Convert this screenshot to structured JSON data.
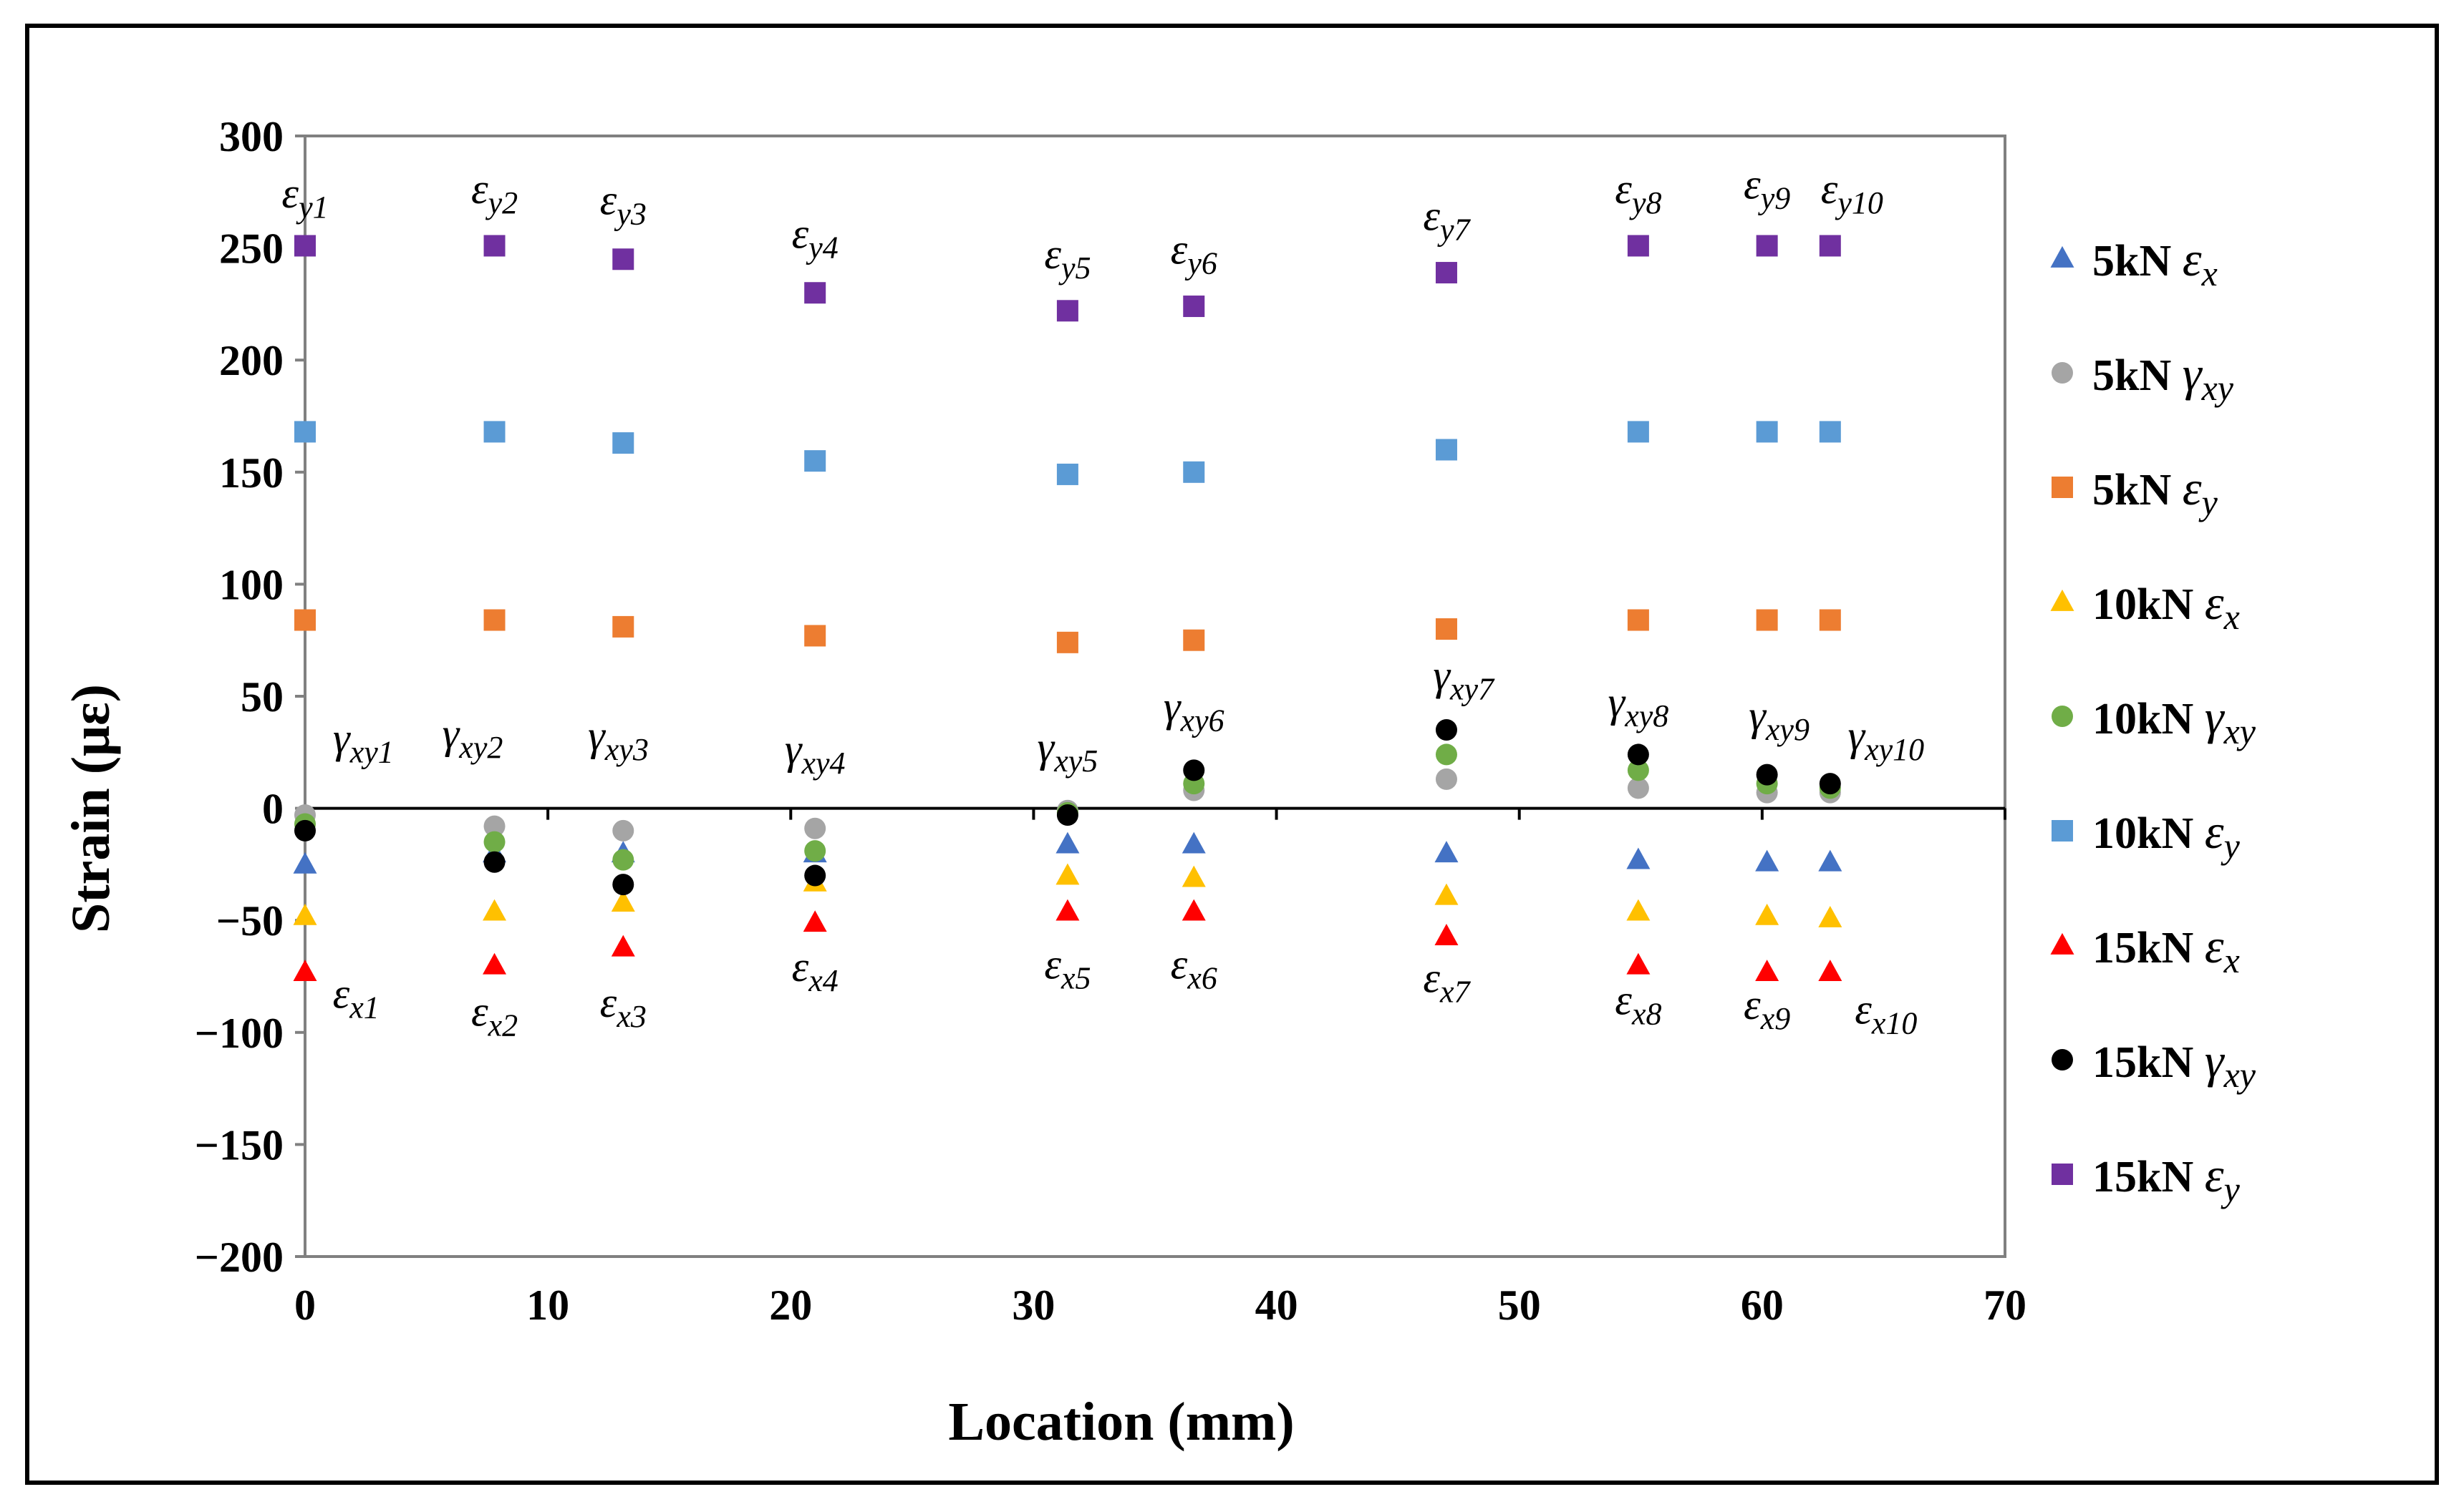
{
  "chart_data": {
    "type": "scatter",
    "title": "",
    "xlabel": "Location (mm)",
    "ylabel": "Strain (με)",
    "xlim": [
      0,
      70
    ],
    "ylim": [
      -200,
      300
    ],
    "x_ticks": [
      "0",
      "10",
      "20",
      "30",
      "40",
      "50",
      "60",
      "70"
    ],
    "y_ticks": [
      "300",
      "250",
      "200",
      "150",
      "100",
      "50",
      "0",
      "−50",
      "−100",
      "−150",
      "−200"
    ],
    "x": [
      0,
      7.8,
      13.1,
      21,
      31.4,
      36.6,
      47,
      54.9,
      60.2,
      62.8
    ],
    "series": [
      {
        "name": "5kN εx",
        "load": "5kN",
        "symbol": "ε",
        "sub": "x",
        "marker": "triangle",
        "color": "#4472C4",
        "values": [
          -25,
          -20,
          -20,
          -20,
          -16,
          -16,
          -20,
          -23,
          -24,
          -24
        ]
      },
      {
        "name": "5kN γxy",
        "load": "5kN",
        "symbol": "γ",
        "sub": "xy",
        "marker": "circle",
        "color": "#A5A5A5",
        "values": [
          -3,
          -8,
          -10,
          -9,
          -1,
          8,
          13,
          9,
          7,
          7
        ]
      },
      {
        "name": "5kN εy",
        "load": "5kN",
        "symbol": "ε",
        "sub": "y",
        "marker": "square",
        "color": "#ED7D31",
        "values": [
          84,
          84,
          81,
          77,
          74,
          75,
          80,
          84,
          84,
          84
        ]
      },
      {
        "name": "10kN εx",
        "load": "10kN",
        "symbol": "ε",
        "sub": "x",
        "marker": "triangle",
        "color": "#FFC000",
        "values": [
          -48,
          -46,
          -42,
          -33,
          -30,
          -31,
          -39,
          -46,
          -48,
          -49
        ]
      },
      {
        "name": "10kN γxy",
        "load": "10kN",
        "symbol": "γ",
        "sub": "xy",
        "marker": "circle",
        "color": "#70AD47",
        "values": [
          -7,
          -15,
          -23,
          -19,
          -2,
          11,
          24,
          17,
          11,
          9
        ]
      },
      {
        "name": "10kN εy",
        "load": "10kN",
        "symbol": "ε",
        "sub": "y",
        "marker": "square",
        "color": "#5B9BD5",
        "values": [
          168,
          168,
          163,
          155,
          149,
          150,
          160,
          168,
          168,
          168
        ]
      },
      {
        "name": "15kN εx",
        "load": "15kN",
        "symbol": "ε",
        "sub": "x",
        "marker": "triangle",
        "color": "#FF0000",
        "values": [
          -73,
          -70,
          -62,
          -51,
          -46,
          -46,
          -57,
          -70,
          -73,
          -73
        ]
      },
      {
        "name": "15kN γxy",
        "load": "15kN",
        "symbol": "γ",
        "sub": "xy",
        "marker": "circle",
        "color": "#000000",
        "values": [
          -10,
          -24,
          -34,
          -30,
          -3,
          17,
          35,
          24,
          15,
          11
        ]
      },
      {
        "name": "15kN εy",
        "load": "15kN",
        "symbol": "ε",
        "sub": "y",
        "marker": "square",
        "color": "#7030A0",
        "values": [
          251,
          251,
          245,
          230,
          222,
          224,
          239,
          251,
          251,
          251
        ]
      }
    ],
    "annotations": [
      {
        "sym": "ε",
        "sub": "y1",
        "x": 0,
        "y": 268
      },
      {
        "sym": "ε",
        "sub": "y2",
        "x": 7.8,
        "y": 270
      },
      {
        "sym": "ε",
        "sub": "y3",
        "x": 13.1,
        "y": 265
      },
      {
        "sym": "ε",
        "sub": "y4",
        "x": 21,
        "y": 250
      },
      {
        "sym": "ε",
        "sub": "y5",
        "x": 31.4,
        "y": 241
      },
      {
        "sym": "ε",
        "sub": "y6",
        "x": 36.6,
        "y": 243
      },
      {
        "sym": "ε",
        "sub": "y7",
        "x": 47,
        "y": 258
      },
      {
        "sym": "ε",
        "sub": "y8",
        "x": 54.9,
        "y": 270
      },
      {
        "sym": "ε",
        "sub": "y9",
        "x": 60.2,
        "y": 272
      },
      {
        "sym": "ε",
        "sub": "y10",
        "x": 63.7,
        "y": 270
      },
      {
        "sym": "γ",
        "sub": "xy1",
        "x": 2.4,
        "y": 25
      },
      {
        "sym": "γ",
        "sub": "xy2",
        "x": 6.9,
        "y": 27
      },
      {
        "sym": "γ",
        "sub": "xy3",
        "x": 12.9,
        "y": 26
      },
      {
        "sym": "γ",
        "sub": "xy4",
        "x": 21,
        "y": 20
      },
      {
        "sym": "γ",
        "sub": "xy5",
        "x": 31.4,
        "y": 21
      },
      {
        "sym": "γ",
        "sub": "xy6",
        "x": 36.6,
        "y": 39
      },
      {
        "sym": "γ",
        "sub": "xy7",
        "x": 47.7,
        "y": 53
      },
      {
        "sym": "γ",
        "sub": "xy8",
        "x": 54.9,
        "y": 41
      },
      {
        "sym": "γ",
        "sub": "xy9",
        "x": 60.7,
        "y": 35
      },
      {
        "sym": "γ",
        "sub": "xy10",
        "x": 65.1,
        "y": 26
      },
      {
        "sym": "ε",
        "sub": "x1",
        "x": 2.1,
        "y": -89
      },
      {
        "sym": "ε",
        "sub": "x2",
        "x": 7.8,
        "y": -97
      },
      {
        "sym": "ε",
        "sub": "x3",
        "x": 13.1,
        "y": -93
      },
      {
        "sym": "ε",
        "sub": "x4",
        "x": 21,
        "y": -77
      },
      {
        "sym": "ε",
        "sub": "x5",
        "x": 31.4,
        "y": -76
      },
      {
        "sym": "ε",
        "sub": "x6",
        "x": 36.6,
        "y": -76
      },
      {
        "sym": "ε",
        "sub": "x7",
        "x": 47,
        "y": -82
      },
      {
        "sym": "ε",
        "sub": "x8",
        "x": 54.9,
        "y": -92
      },
      {
        "sym": "ε",
        "sub": "x9",
        "x": 60.2,
        "y": -94
      },
      {
        "sym": "ε",
        "sub": "x10",
        "x": 65.1,
        "y": -96
      }
    ]
  }
}
